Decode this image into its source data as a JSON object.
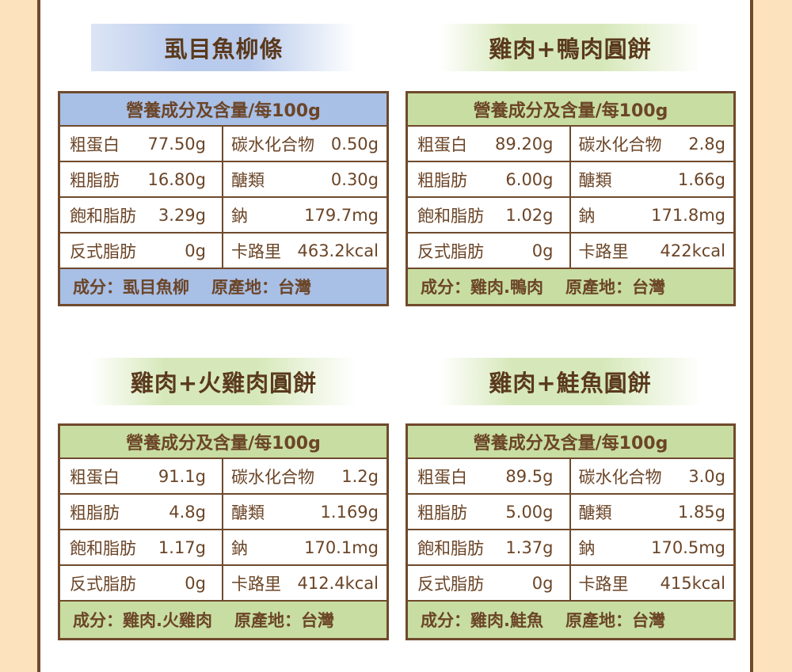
{
  "colors": {
    "side_band": "#FCE3BE",
    "side_line": "#6F4A2C",
    "text": "#6B4527",
    "title_text": "#5A391D"
  },
  "panels": [
    {
      "title": "虱目魚柳條",
      "theme_color": "#A8BFE6",
      "banner_color": "#B9CBEC",
      "table_header": "營養成分及含量/每100g",
      "rows": [
        {
          "left_label": "粗蛋白",
          "left_value": "77.50g",
          "right_label": "碳水化合物",
          "right_value": "0.50g"
        },
        {
          "left_label": "粗脂肪",
          "left_value": "16.80g",
          "right_label": "醣類",
          "right_value": "0.30g"
        },
        {
          "left_label": "飽和脂肪",
          "left_value": "3.29g",
          "right_label": "鈉",
          "right_value": "179.7mg"
        },
        {
          "left_label": "反式脂肪",
          "left_value": "0g",
          "right_label": "卡路里",
          "right_value": "463.2kcal"
        }
      ],
      "ingredients": "成分：虱目魚柳",
      "origin": "原產地：台灣"
    },
    {
      "title": "雞肉+鴨肉圓餅",
      "theme_color": "#C8DDA2",
      "banner_color": "#D6E8B9",
      "table_header": "營養成分及含量/每100g",
      "rows": [
        {
          "left_label": "粗蛋白",
          "left_value": "89.20g",
          "right_label": "碳水化合物",
          "right_value": "2.8g"
        },
        {
          "left_label": "粗脂肪",
          "left_value": "6.00g",
          "right_label": "醣類",
          "right_value": "1.66g"
        },
        {
          "left_label": "飽和脂肪",
          "left_value": "1.02g",
          "right_label": "鈉",
          "right_value": "171.8mg"
        },
        {
          "left_label": "反式脂肪",
          "left_value": "0g",
          "right_label": "卡路里",
          "right_value": "422kcal"
        }
      ],
      "ingredients": "成分：雞肉.鴨肉",
      "origin": "原產地：台灣"
    },
    {
      "title": "雞肉+火雞肉圓餅",
      "theme_color": "#C8DDA2",
      "banner_color": "#D6E8B9",
      "table_header": "營養成分及含量/每100g",
      "rows": [
        {
          "left_label": "粗蛋白",
          "left_value": "91.1g",
          "right_label": "碳水化合物",
          "right_value": "1.2g"
        },
        {
          "left_label": "粗脂肪",
          "left_value": "4.8g",
          "right_label": "醣類",
          "right_value": "1.169g"
        },
        {
          "left_label": "飽和脂肪",
          "left_value": "1.17g",
          "right_label": "鈉",
          "right_value": "170.1mg"
        },
        {
          "left_label": "反式脂肪",
          "left_value": "0g",
          "right_label": "卡路里",
          "right_value": "412.4kcal"
        }
      ],
      "ingredients": "成分：雞肉.火雞肉",
      "origin": "原產地：台灣"
    },
    {
      "title": "雞肉+鮭魚圓餅",
      "theme_color": "#C8DDA2",
      "banner_color": "#D6E8B9",
      "table_header": "營養成分及含量/每100g",
      "rows": [
        {
          "left_label": "粗蛋白",
          "left_value": "89.5g",
          "right_label": "碳水化合物",
          "right_value": "3.0g"
        },
        {
          "left_label": "粗脂肪",
          "left_value": "5.00g",
          "right_label": "醣類",
          "right_value": "1.85g"
        },
        {
          "left_label": "飽和脂肪",
          "left_value": "1.37g",
          "right_label": "鈉",
          "right_value": "170.5mg"
        },
        {
          "left_label": "反式脂肪",
          "left_value": "0g",
          "right_label": "卡路里",
          "right_value": "415kcal"
        }
      ],
      "ingredients": "成分：雞肉.鮭魚",
      "origin": "原產地：台灣"
    }
  ]
}
